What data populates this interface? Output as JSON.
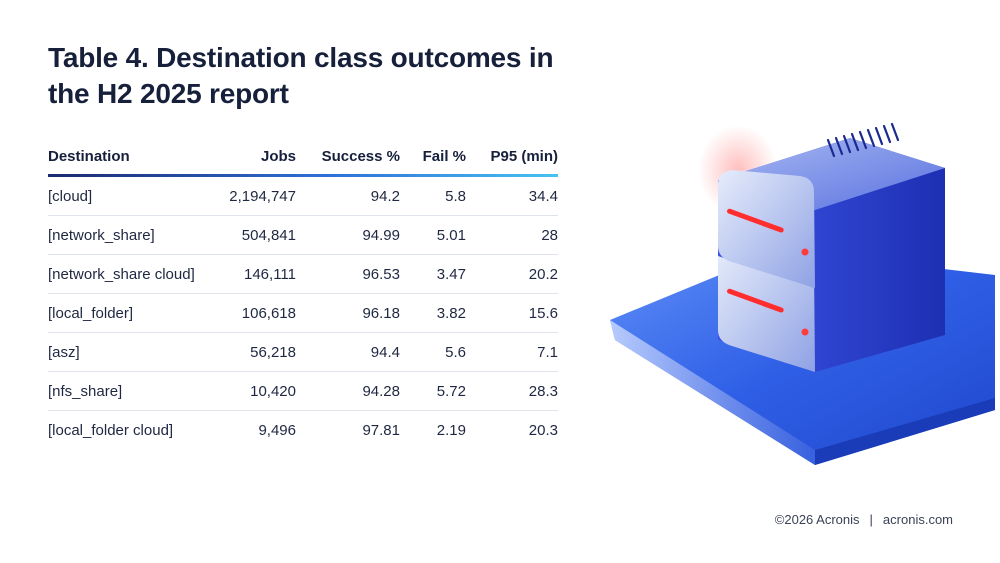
{
  "title": "Table 4. Destination class outcomes in the H2 2025 report",
  "table": {
    "headers": [
      "Destination",
      "Jobs",
      "Success %",
      "Fail %",
      "P95 (min)"
    ],
    "rows": [
      [
        "[cloud]",
        "2,194,747",
        "94.2",
        "5.8",
        "34.4"
      ],
      [
        "[network_share]",
        "504,841",
        "94.99",
        "5.01",
        "28"
      ],
      [
        "[network_share cloud]",
        "146,111",
        "96.53",
        "3.47",
        "20.2"
      ],
      [
        "[local_folder]",
        "106,618",
        "96.18",
        "3.82",
        "15.6"
      ],
      [
        "[asz]",
        "56,218",
        "94.4",
        "5.6",
        "7.1"
      ],
      [
        "[nfs_share]",
        "10,420",
        "94.28",
        "5.72",
        "28.3"
      ],
      [
        "[local_folder cloud]",
        "9,496",
        "97.81",
        "2.19",
        "20.3"
      ]
    ]
  },
  "footer": {
    "copyright": "©2026 Acronis",
    "separator": "|",
    "site": "acronis.com"
  },
  "illustration": {
    "icon": "server-stack-icon",
    "colors": {
      "server_body": "#2a3fd6",
      "server_face": "#c9d3f5",
      "led": "#ff3b3b",
      "platform": "#3a6cf0"
    }
  }
}
